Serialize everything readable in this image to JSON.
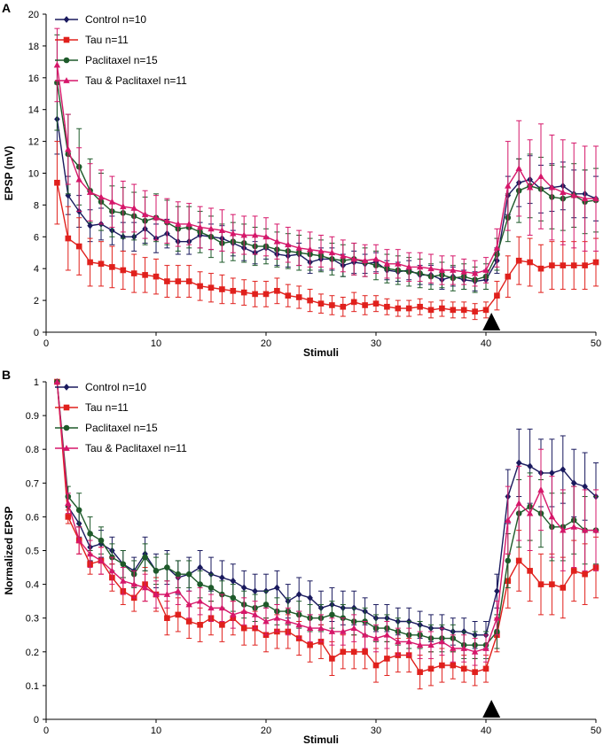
{
  "colors": {
    "control": "#1a1a5e",
    "tau": "#e0201c",
    "paclitaxel": "#1e5a2a",
    "tau_paclitaxel": "#d6176a",
    "axis": "#000000",
    "marker": "#000000"
  },
  "chart_data": [
    {
      "panel_label": "A",
      "type": "line",
      "title": "",
      "xlabel": "Stimuli",
      "ylabel": "EPSP (mV)",
      "xlim": [
        0,
        50
      ],
      "ylim": [
        0,
        20
      ],
      "x_ticks": [
        0,
        10,
        20,
        30,
        40,
        50
      ],
      "y_ticks": [
        0,
        2,
        4,
        6,
        8,
        10,
        12,
        14,
        16,
        18,
        20
      ],
      "grid": false,
      "legend_position": "top-left",
      "arrow_marker_x": 40.5,
      "x": [
        1,
        2,
        3,
        4,
        5,
        6,
        7,
        8,
        9,
        10,
        11,
        12,
        13,
        14,
        15,
        16,
        17,
        18,
        19,
        20,
        21,
        22,
        23,
        24,
        25,
        26,
        27,
        28,
        29,
        30,
        31,
        32,
        33,
        34,
        35,
        36,
        37,
        38,
        39,
        40,
        41,
        42,
        43,
        44,
        45,
        46,
        47,
        48,
        49,
        50
      ],
      "series": [
        {
          "key": "control",
          "name": "Control n=10",
          "marker": "diamond",
          "values": [
            13.4,
            8.6,
            7.6,
            6.7,
            6.8,
            6.4,
            6.0,
            6.0,
            6.5,
            5.9,
            6.2,
            5.7,
            5.7,
            6.1,
            6.0,
            5.9,
            5.6,
            5.3,
            5.0,
            5.3,
            4.9,
            4.8,
            4.9,
            4.4,
            4.6,
            4.6,
            4.2,
            4.4,
            4.3,
            4.4,
            3.9,
            3.8,
            3.9,
            3.6,
            3.6,
            3.3,
            3.5,
            3.3,
            3.2,
            3.3,
            4.5,
            8.6,
            9.4,
            9.6,
            9.0,
            9.1,
            9.2,
            8.7,
            8.7,
            8.4
          ],
          "errors": [
            2.2,
            1.2,
            1.0,
            1.0,
            1.0,
            0.9,
            0.9,
            0.9,
            0.9,
            0.9,
            0.9,
            0.8,
            0.8,
            0.8,
            0.8,
            0.8,
            0.8,
            0.8,
            0.7,
            0.7,
            0.7,
            0.7,
            0.7,
            0.7,
            0.7,
            0.7,
            0.7,
            0.7,
            0.6,
            0.6,
            0.6,
            0.6,
            0.6,
            0.6,
            0.6,
            0.6,
            0.6,
            0.6,
            0.6,
            0.6,
            0.8,
            1.2,
            1.5,
            1.5,
            1.5,
            1.5,
            1.5,
            1.5,
            1.5,
            1.4
          ]
        },
        {
          "key": "tau",
          "name": "Tau n=11",
          "marker": "square",
          "values": [
            9.4,
            5.9,
            5.4,
            4.4,
            4.3,
            4.1,
            3.9,
            3.7,
            3.6,
            3.5,
            3.2,
            3.2,
            3.2,
            2.9,
            2.8,
            2.7,
            2.6,
            2.5,
            2.4,
            2.4,
            2.6,
            2.3,
            2.2,
            2.0,
            1.8,
            1.7,
            1.6,
            1.9,
            1.7,
            1.8,
            1.6,
            1.5,
            1.5,
            1.6,
            1.4,
            1.5,
            1.4,
            1.4,
            1.3,
            1.4,
            2.3,
            3.5,
            4.5,
            4.4,
            4.0,
            4.2,
            4.2,
            4.2,
            4.2,
            4.4
          ],
          "errors": [
            2.6,
            2.0,
            1.8,
            1.5,
            1.4,
            1.3,
            1.2,
            1.2,
            1.1,
            1.1,
            1.0,
            1.0,
            1.0,
            0.9,
            0.9,
            0.9,
            0.8,
            0.8,
            0.8,
            0.8,
            0.8,
            0.7,
            0.7,
            0.7,
            0.6,
            0.6,
            0.6,
            0.6,
            0.6,
            0.5,
            0.5,
            0.5,
            0.5,
            0.5,
            0.5,
            0.5,
            0.5,
            0.5,
            0.5,
            0.5,
            0.9,
            1.3,
            1.5,
            1.5,
            1.5,
            1.5,
            1.5,
            1.5,
            1.5,
            1.5
          ]
        },
        {
          "key": "paclitaxel",
          "name": "Paclitaxel n=15",
          "marker": "circle",
          "values": [
            15.7,
            11.2,
            10.4,
            8.9,
            8.2,
            7.6,
            7.5,
            7.3,
            7.0,
            7.2,
            6.9,
            6.5,
            6.6,
            6.3,
            6.0,
            5.6,
            5.7,
            5.6,
            5.4,
            5.4,
            5.2,
            5.1,
            5.0,
            4.9,
            4.8,
            4.6,
            4.5,
            4.6,
            4.4,
            4.2,
            4.0,
            3.9,
            3.8,
            3.7,
            3.5,
            3.6,
            3.4,
            3.5,
            3.3,
            3.5,
            4.9,
            7.2,
            8.9,
            9.2,
            9.0,
            8.5,
            8.4,
            8.6,
            8.2,
            8.3
          ],
          "errors": [
            3.0,
            2.5,
            2.4,
            2.0,
            1.8,
            1.6,
            1.6,
            1.5,
            1.5,
            1.5,
            1.4,
            1.4,
            1.3,
            1.3,
            1.3,
            1.2,
            1.2,
            1.2,
            1.2,
            1.1,
            1.1,
            1.1,
            1.1,
            1.0,
            1.0,
            1.0,
            1.0,
            1.0,
            0.9,
            0.9,
            0.9,
            0.9,
            0.9,
            0.9,
            0.8,
            0.8,
            0.8,
            0.8,
            0.8,
            0.8,
            1.0,
            1.5,
            2.0,
            2.0,
            2.0,
            2.0,
            2.0,
            2.0,
            2.0,
            2.0
          ]
        },
        {
          "key": "tau_paclitaxel",
          "name": "Tau & Paclitaxel n=11",
          "marker": "triangle",
          "values": [
            16.8,
            11.5,
            9.6,
            8.8,
            8.5,
            8.2,
            7.9,
            7.8,
            7.4,
            7.2,
            7.0,
            6.8,
            6.8,
            6.6,
            6.5,
            6.4,
            6.2,
            6.1,
            6.1,
            6.0,
            5.7,
            5.5,
            5.3,
            5.2,
            5.1,
            5.0,
            4.8,
            4.6,
            4.5,
            4.6,
            4.3,
            4.3,
            4.1,
            4.1,
            4.0,
            3.9,
            3.9,
            3.8,
            3.7,
            3.9,
            5.3,
            9.2,
            10.3,
            9.1,
            9.8,
            9.1,
            8.8,
            8.6,
            8.4,
            8.4
          ],
          "errors": [
            2.3,
            2.2,
            2.0,
            1.8,
            1.7,
            1.6,
            1.6,
            1.5,
            1.5,
            1.4,
            1.4,
            1.4,
            1.3,
            1.3,
            1.3,
            1.3,
            1.2,
            1.2,
            1.2,
            1.2,
            1.1,
            1.1,
            1.1,
            1.1,
            1.0,
            1.0,
            1.0,
            1.0,
            1.0,
            0.9,
            0.9,
            0.9,
            0.9,
            0.9,
            0.9,
            0.9,
            0.9,
            0.8,
            0.8,
            0.8,
            1.2,
            2.8,
            3.0,
            3.0,
            3.3,
            3.3,
            3.3,
            3.3,
            3.3,
            3.3
          ]
        }
      ]
    },
    {
      "panel_label": "B",
      "type": "line",
      "title": "",
      "xlabel": "Stimuli",
      "ylabel": "Normalized EPSP",
      "xlim": [
        0,
        50
      ],
      "ylim": [
        0,
        1
      ],
      "x_ticks": [
        0,
        10,
        20,
        30,
        40,
        50
      ],
      "y_ticks": [
        0,
        0.1,
        0.2,
        0.3,
        0.4,
        0.5,
        0.6,
        0.7,
        0.8,
        0.9,
        1
      ],
      "grid": false,
      "legend_position": "top-left",
      "arrow_marker_x": 40.5,
      "x": [
        1,
        2,
        3,
        4,
        5,
        6,
        7,
        8,
        9,
        10,
        11,
        12,
        13,
        14,
        15,
        16,
        17,
        18,
        19,
        20,
        21,
        22,
        23,
        24,
        25,
        26,
        27,
        28,
        29,
        30,
        31,
        32,
        33,
        34,
        35,
        36,
        37,
        38,
        39,
        40,
        41,
        42,
        43,
        44,
        45,
        46,
        47,
        48,
        49,
        50
      ],
      "series": [
        {
          "key": "control",
          "name": "Control n=10",
          "marker": "diamond",
          "values": [
            1.0,
            0.63,
            0.58,
            0.51,
            0.52,
            0.5,
            0.46,
            0.44,
            0.49,
            0.44,
            0.45,
            0.42,
            0.43,
            0.45,
            0.43,
            0.42,
            0.41,
            0.39,
            0.38,
            0.38,
            0.39,
            0.35,
            0.37,
            0.36,
            0.33,
            0.34,
            0.33,
            0.33,
            0.32,
            0.3,
            0.3,
            0.29,
            0.29,
            0.28,
            0.27,
            0.27,
            0.26,
            0.26,
            0.25,
            0.25,
            0.38,
            0.66,
            0.76,
            0.75,
            0.73,
            0.73,
            0.74,
            0.7,
            0.69,
            0.66
          ],
          "errors": [
            0,
            0.03,
            0.04,
            0.04,
            0.04,
            0.04,
            0.04,
            0.04,
            0.05,
            0.05,
            0.05,
            0.05,
            0.05,
            0.05,
            0.05,
            0.05,
            0.05,
            0.05,
            0.05,
            0.05,
            0.05,
            0.05,
            0.05,
            0.05,
            0.05,
            0.05,
            0.05,
            0.05,
            0.04,
            0.04,
            0.04,
            0.04,
            0.04,
            0.04,
            0.04,
            0.04,
            0.04,
            0.04,
            0.04,
            0.04,
            0.05,
            0.08,
            0.1,
            0.11,
            0.1,
            0.1,
            0.1,
            0.1,
            0.1,
            0.1
          ]
        },
        {
          "key": "tau",
          "name": "Tau n=11",
          "marker": "square",
          "values": [
            1.0,
            0.6,
            0.53,
            0.46,
            0.47,
            0.42,
            0.38,
            0.36,
            0.4,
            0.37,
            0.3,
            0.31,
            0.29,
            0.28,
            0.3,
            0.28,
            0.3,
            0.27,
            0.27,
            0.25,
            0.26,
            0.26,
            0.24,
            0.22,
            0.23,
            0.18,
            0.2,
            0.2,
            0.2,
            0.16,
            0.18,
            0.19,
            0.19,
            0.14,
            0.15,
            0.16,
            0.16,
            0.15,
            0.14,
            0.15,
            0.25,
            0.41,
            0.47,
            0.44,
            0.4,
            0.4,
            0.39,
            0.44,
            0.43,
            0.45
          ],
          "errors": [
            0,
            0.02,
            0.04,
            0.03,
            0.04,
            0.04,
            0.04,
            0.04,
            0.05,
            0.05,
            0.05,
            0.05,
            0.05,
            0.05,
            0.05,
            0.05,
            0.05,
            0.05,
            0.05,
            0.05,
            0.05,
            0.05,
            0.05,
            0.05,
            0.05,
            0.05,
            0.05,
            0.05,
            0.05,
            0.05,
            0.05,
            0.05,
            0.05,
            0.05,
            0.05,
            0.05,
            0.04,
            0.04,
            0.04,
            0.04,
            0.05,
            0.08,
            0.09,
            0.09,
            0.09,
            0.09,
            0.09,
            0.09,
            0.09,
            0.09
          ]
        },
        {
          "key": "paclitaxel",
          "name": "Paclitaxel n=15",
          "marker": "circle",
          "values": [
            1.0,
            0.66,
            0.62,
            0.55,
            0.53,
            0.48,
            0.46,
            0.43,
            0.48,
            0.44,
            0.45,
            0.43,
            0.43,
            0.4,
            0.39,
            0.37,
            0.36,
            0.34,
            0.33,
            0.34,
            0.32,
            0.32,
            0.31,
            0.3,
            0.3,
            0.31,
            0.3,
            0.29,
            0.29,
            0.27,
            0.27,
            0.26,
            0.25,
            0.25,
            0.24,
            0.24,
            0.24,
            0.22,
            0.22,
            0.22,
            0.26,
            0.47,
            0.61,
            0.63,
            0.61,
            0.57,
            0.57,
            0.59,
            0.56,
            0.56
          ],
          "errors": [
            0,
            0.03,
            0.05,
            0.05,
            0.04,
            0.04,
            0.04,
            0.04,
            0.04,
            0.04,
            0.04,
            0.04,
            0.04,
            0.04,
            0.04,
            0.04,
            0.04,
            0.04,
            0.04,
            0.04,
            0.04,
            0.04,
            0.04,
            0.04,
            0.04,
            0.04,
            0.04,
            0.04,
            0.04,
            0.04,
            0.04,
            0.04,
            0.04,
            0.04,
            0.04,
            0.04,
            0.04,
            0.04,
            0.04,
            0.04,
            0.05,
            0.08,
            0.1,
            0.1,
            0.1,
            0.1,
            0.1,
            0.1,
            0.1,
            0.1
          ]
        },
        {
          "key": "tau_paclitaxel",
          "name": "Tau & Paclitaxel n=11",
          "marker": "triangle",
          "values": [
            1.0,
            0.64,
            0.53,
            0.49,
            0.47,
            0.44,
            0.41,
            0.4,
            0.39,
            0.37,
            0.37,
            0.38,
            0.34,
            0.35,
            0.33,
            0.33,
            0.31,
            0.32,
            0.31,
            0.29,
            0.3,
            0.29,
            0.28,
            0.27,
            0.27,
            0.26,
            0.26,
            0.27,
            0.25,
            0.24,
            0.25,
            0.23,
            0.23,
            0.22,
            0.22,
            0.23,
            0.21,
            0.21,
            0.2,
            0.21,
            0.3,
            0.59,
            0.64,
            0.61,
            0.68,
            0.6,
            0.56,
            0.57,
            0.56,
            0.56
          ],
          "errors": [
            0,
            0.03,
            0.04,
            0.04,
            0.04,
            0.04,
            0.04,
            0.04,
            0.04,
            0.04,
            0.04,
            0.04,
            0.04,
            0.04,
            0.04,
            0.04,
            0.04,
            0.04,
            0.04,
            0.04,
            0.04,
            0.04,
            0.04,
            0.04,
            0.04,
            0.04,
            0.04,
            0.04,
            0.04,
            0.04,
            0.04,
            0.04,
            0.04,
            0.04,
            0.04,
            0.04,
            0.04,
            0.04,
            0.04,
            0.04,
            0.05,
            0.1,
            0.11,
            0.11,
            0.12,
            0.12,
            0.12,
            0.12,
            0.12,
            0.12
          ]
        }
      ]
    }
  ]
}
